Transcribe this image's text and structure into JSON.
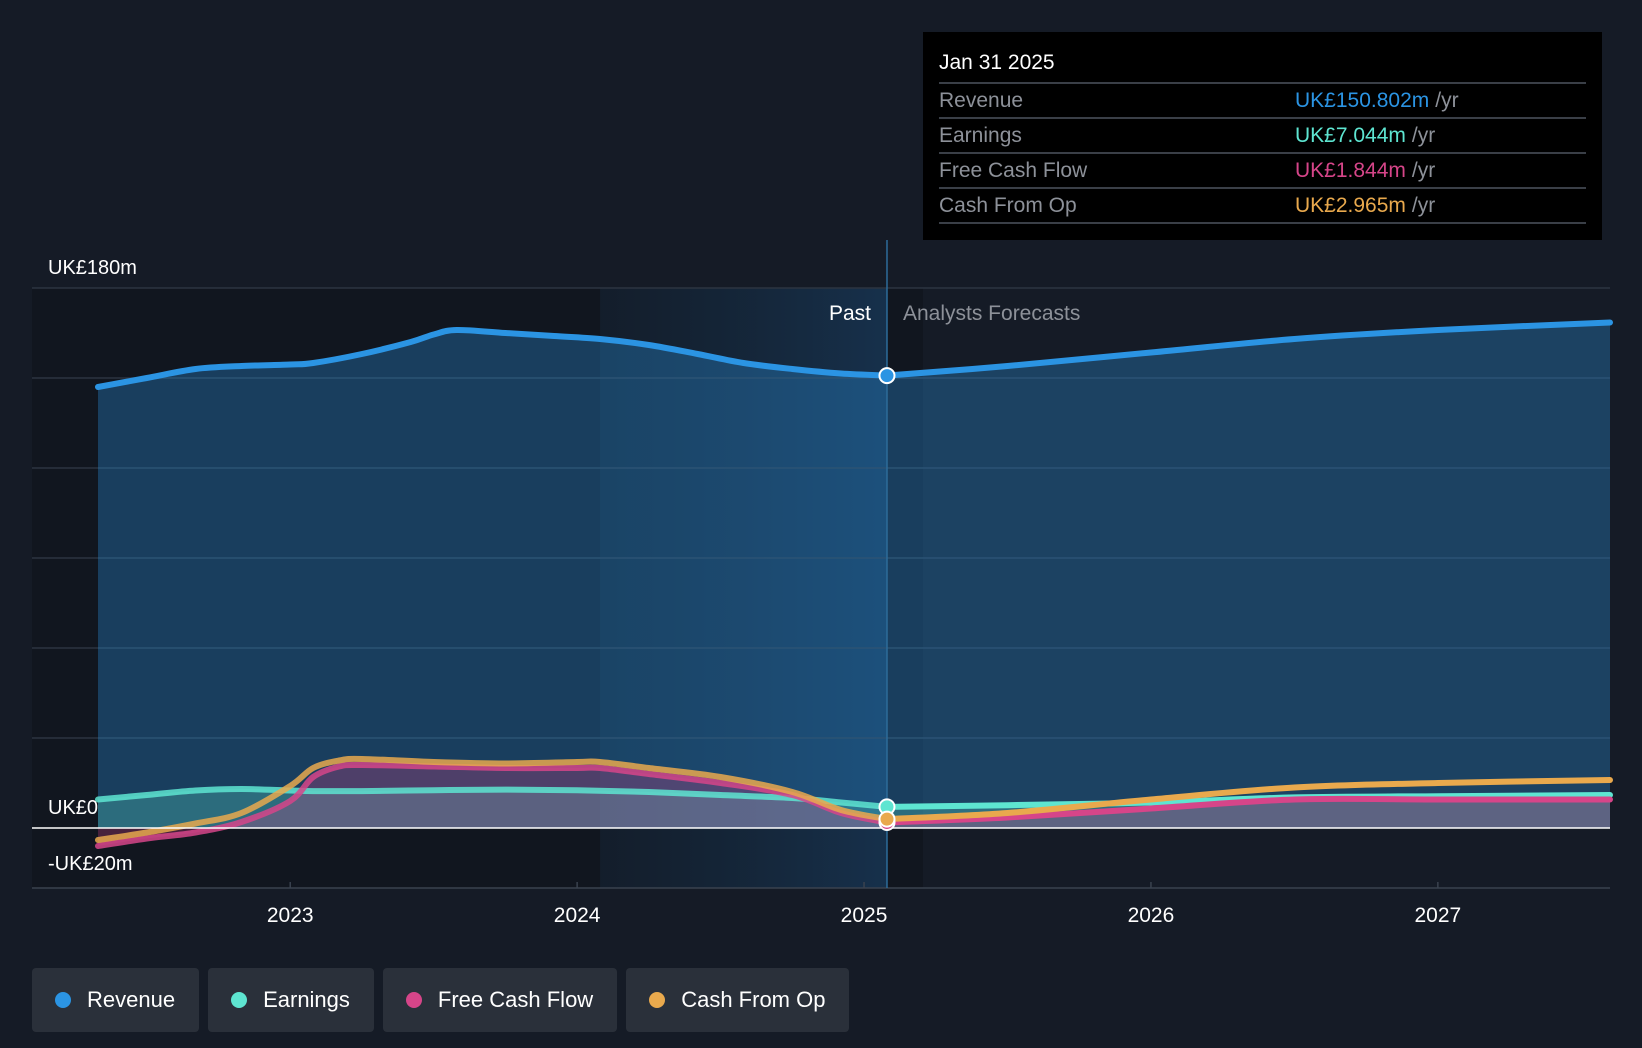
{
  "chart_data": {
    "type": "line",
    "x_unit": "year",
    "xlim": [
      2022.1,
      2027.6
    ],
    "ylim": [
      -20,
      180
    ],
    "y_axis_labels": [
      {
        "value": 180,
        "text": "UK£180m"
      },
      {
        "value": 0,
        "text": "UK£0"
      },
      {
        "value": -20,
        "text": "-UK£20m"
      }
    ],
    "x_ticks": [
      {
        "value": 2023,
        "text": "2023"
      },
      {
        "value": 2024,
        "text": "2024"
      },
      {
        "value": 2025,
        "text": "2025"
      },
      {
        "value": 2026,
        "text": "2026"
      },
      {
        "value": 2027,
        "text": "2027"
      }
    ],
    "divider_x": 2025.08,
    "shade_start_x": 2024.08,
    "past_label": "Past",
    "forecast_label": "Analysts Forecasts",
    "series": [
      {
        "name": "Revenue",
        "color": "#2b94e3",
        "area": true,
        "points": [
          [
            2022.33,
            147
          ],
          [
            2022.5,
            150
          ],
          [
            2022.67,
            153
          ],
          [
            2022.83,
            154
          ],
          [
            2023.0,
            154.5
          ],
          [
            2023.08,
            155
          ],
          [
            2023.25,
            158
          ],
          [
            2023.42,
            162
          ],
          [
            2023.5,
            164.5
          ],
          [
            2023.58,
            166
          ],
          [
            2023.75,
            165
          ],
          [
            2023.92,
            164
          ],
          [
            2024.08,
            163
          ],
          [
            2024.25,
            161
          ],
          [
            2024.42,
            158
          ],
          [
            2024.58,
            155
          ],
          [
            2024.75,
            153
          ],
          [
            2024.92,
            151.5
          ],
          [
            2025.08,
            150.8
          ]
        ],
        "forecast": [
          [
            2025.08,
            150.8
          ],
          [
            2025.5,
            154
          ],
          [
            2026.0,
            158.5
          ],
          [
            2026.5,
            163
          ],
          [
            2027.0,
            166
          ],
          [
            2027.6,
            168.5
          ]
        ]
      },
      {
        "name": "Earnings",
        "color": "#5ee5d1",
        "area": true,
        "points": [
          [
            2022.33,
            9.5
          ],
          [
            2022.5,
            11
          ],
          [
            2022.67,
            12.5
          ],
          [
            2022.83,
            13
          ],
          [
            2023.0,
            12.5
          ],
          [
            2023.08,
            12.3
          ],
          [
            2023.25,
            12.3
          ],
          [
            2023.5,
            12.6
          ],
          [
            2023.75,
            12.8
          ],
          [
            2024.0,
            12.6
          ],
          [
            2024.25,
            12
          ],
          [
            2024.5,
            11
          ],
          [
            2024.75,
            10
          ],
          [
            2024.92,
            8.5
          ],
          [
            2025.08,
            7.044
          ]
        ],
        "forecast": [
          [
            2025.08,
            7.044
          ],
          [
            2025.5,
            7.6
          ],
          [
            2026.0,
            8.5
          ],
          [
            2026.5,
            10.2
          ],
          [
            2027.0,
            10.6
          ],
          [
            2027.6,
            11
          ]
        ]
      },
      {
        "name": "Free Cash Flow",
        "color": "#d64589",
        "area": true,
        "points": [
          [
            2022.33,
            -6
          ],
          [
            2022.5,
            -3.5
          ],
          [
            2022.67,
            -1.5
          ],
          [
            2022.83,
            2
          ],
          [
            2023.0,
            9
          ],
          [
            2023.08,
            17
          ],
          [
            2023.17,
            20.5
          ],
          [
            2023.25,
            21
          ],
          [
            2023.5,
            20.5
          ],
          [
            2023.75,
            20
          ],
          [
            2024.0,
            20
          ],
          [
            2024.08,
            20
          ],
          [
            2024.25,
            18
          ],
          [
            2024.5,
            15
          ],
          [
            2024.75,
            11
          ],
          [
            2024.92,
            5
          ],
          [
            2025.08,
            1.844
          ]
        ],
        "forecast": [
          [
            2025.08,
            1.844
          ],
          [
            2025.5,
            3.5
          ],
          [
            2026.0,
            6.5
          ],
          [
            2026.5,
            9.5
          ],
          [
            2027.0,
            9.5
          ],
          [
            2027.6,
            9.5
          ]
        ]
      },
      {
        "name": "Cash From Op",
        "color": "#e9a94d",
        "area": false,
        "points": [
          [
            2022.33,
            -4
          ],
          [
            2022.5,
            -1.5
          ],
          [
            2022.67,
            1.5
          ],
          [
            2022.83,
            5
          ],
          [
            2023.0,
            14
          ],
          [
            2023.08,
            20
          ],
          [
            2023.17,
            22.5
          ],
          [
            2023.25,
            23
          ],
          [
            2023.5,
            22
          ],
          [
            2023.75,
            21.5
          ],
          [
            2024.0,
            22
          ],
          [
            2024.08,
            22
          ],
          [
            2024.25,
            20
          ],
          [
            2024.5,
            17
          ],
          [
            2024.75,
            12
          ],
          [
            2024.92,
            6
          ],
          [
            2025.08,
            2.965
          ]
        ],
        "forecast": [
          [
            2025.08,
            2.965
          ],
          [
            2025.5,
            5
          ],
          [
            2026.0,
            9.5
          ],
          [
            2026.5,
            13.5
          ],
          [
            2027.0,
            15
          ],
          [
            2027.6,
            16
          ]
        ]
      }
    ]
  },
  "tooltip": {
    "date": "Jan 31 2025",
    "rows": [
      {
        "label": "Revenue",
        "value": "UK£150.802m",
        "unit": "/yr",
        "color": "#2b94e3"
      },
      {
        "label": "Earnings",
        "value": "UK£7.044m",
        "unit": "/yr",
        "color": "#5ee5d1"
      },
      {
        "label": "Free Cash Flow",
        "value": "UK£1.844m",
        "unit": "/yr",
        "color": "#d64589"
      },
      {
        "label": "Cash From Op",
        "value": "UK£2.965m",
        "unit": "/yr",
        "color": "#e9a94d"
      }
    ]
  },
  "legend": {
    "items": [
      {
        "label": "Revenue",
        "color": "#2b94e3"
      },
      {
        "label": "Earnings",
        "color": "#5ee5d1"
      },
      {
        "label": "Free Cash Flow",
        "color": "#d64589"
      },
      {
        "label": "Cash From Op",
        "color": "#e9a94d"
      }
    ]
  }
}
